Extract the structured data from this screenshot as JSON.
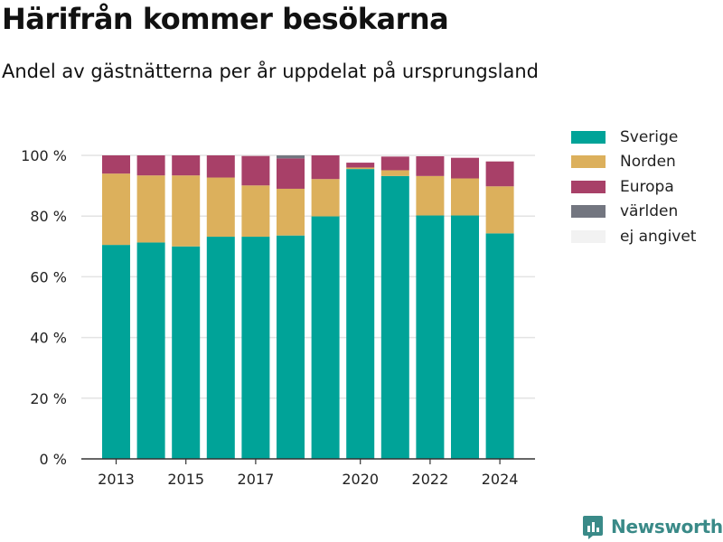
{
  "title": "Härifrån kommer besökarna",
  "subtitle": "Andel av gästnätterna per år uppdelat på ursprungsland",
  "brand": {
    "name": "Newsworthy",
    "icon": "newsworthy-logo-icon",
    "color": "#3a8a88"
  },
  "chart_data": {
    "type": "bar",
    "stacked": true,
    "title": "",
    "xlabel": "",
    "ylabel": "",
    "ylim": [
      0,
      100
    ],
    "y_ticks": [
      0,
      20,
      40,
      60,
      80,
      100
    ],
    "y_tick_labels": [
      "0 %",
      "20 %",
      "40 %",
      "60 %",
      "80 %",
      "100 %"
    ],
    "x_ticks": [
      2013,
      2015,
      2017,
      2020,
      2022,
      2024
    ],
    "x_tick_labels": [
      "2013",
      "2015",
      "2017",
      "2020",
      "2022",
      "2024"
    ],
    "grid": true,
    "legend": "right",
    "categories": [
      2013,
      2014,
      2015,
      2016,
      2017,
      2018,
      2019,
      2020,
      2021,
      2022,
      2023,
      2024
    ],
    "series": [
      {
        "name": "Sverige",
        "color": "#00a398",
        "values": [
          70.5,
          71.3,
          70.0,
          73.2,
          73.2,
          73.6,
          79.9,
          95.5,
          93.2,
          80.2,
          80.2,
          74.3
        ]
      },
      {
        "name": "Norden",
        "color": "#dcb05c",
        "values": [
          23.5,
          22.1,
          23.4,
          19.5,
          16.9,
          15.4,
          12.3,
          0.5,
          1.9,
          13.0,
          12.2,
          15.5
        ]
      },
      {
        "name": "Europa",
        "color": "#a84068",
        "values": [
          6.0,
          6.6,
          6.6,
          7.3,
          9.7,
          10.0,
          7.8,
          1.6,
          4.5,
          6.5,
          6.8,
          8.2
        ]
      },
      {
        "name": "världen",
        "color": "#737680",
        "values": [
          0,
          0,
          0,
          0,
          0,
          1.0,
          0,
          0,
          0,
          0,
          0,
          0
        ]
      },
      {
        "name": "ej angivet",
        "color": "#f2f2f2",
        "values": [
          0,
          0,
          0,
          0,
          0,
          0,
          0,
          0,
          0,
          0,
          0,
          0
        ]
      }
    ]
  }
}
